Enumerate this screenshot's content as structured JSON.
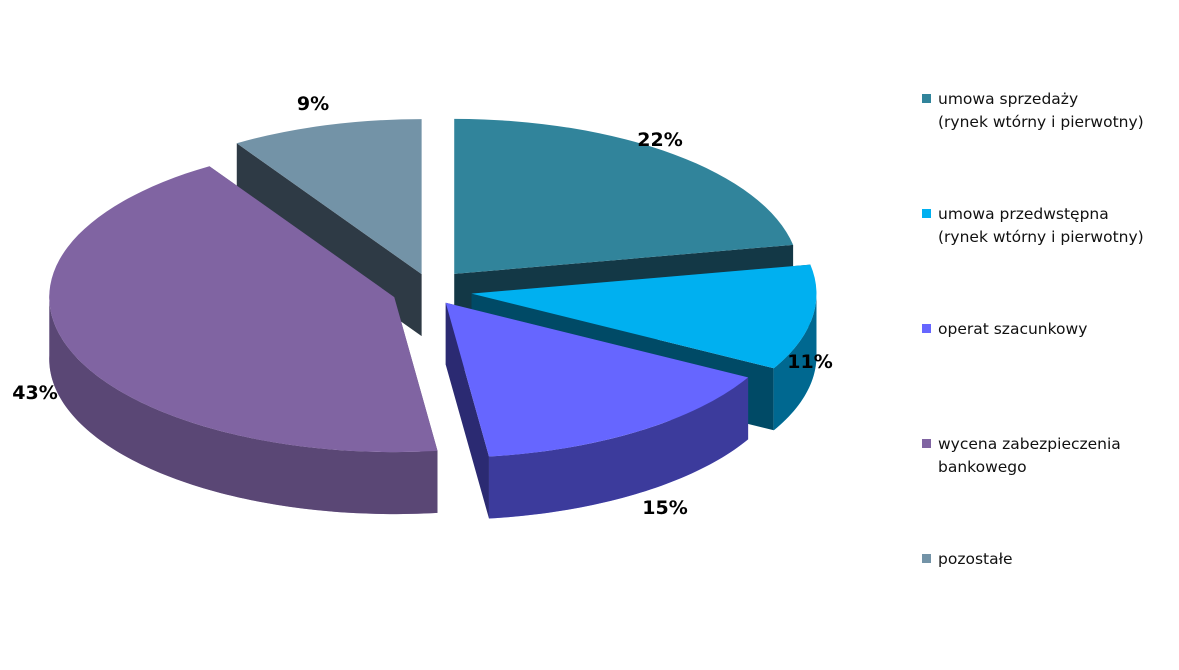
{
  "chart_data": {
    "type": "pie",
    "style": "3d-exploded",
    "legend_position": "right",
    "slices": [
      {
        "name": "umowa sprzedaży\n(rynek wtórny i pierwotny)",
        "value": 22,
        "label": "22%",
        "color": "#31849B",
        "side_color": "#133846",
        "legend_color": "#31849B"
      },
      {
        "name": "umowa przedwstępna\n(rynek wtórny i pierwotny)",
        "value": 11,
        "label": "11%",
        "color": "#00B0F0",
        "side_color": "#004A66",
        "legend_color": "#00B0F0"
      },
      {
        "name": "operat szacunkowy",
        "value": 15,
        "label": "15%",
        "color": "#6666FF",
        "side_color": "#2B2A72",
        "legend_color": "#6666FF"
      },
      {
        "name": "wycena zabezpieczenia bankowego",
        "value": 43,
        "label": "43%",
        "color": "#8064A2",
        "side_color": "#4A3A62",
        "legend_color": "#8064A2"
      },
      {
        "name": "pozostałe",
        "value": 9,
        "label": "9%",
        "color": "#7393A7",
        "side_color": "#2E3A45",
        "legend_color": "#7393A7"
      }
    ]
  }
}
